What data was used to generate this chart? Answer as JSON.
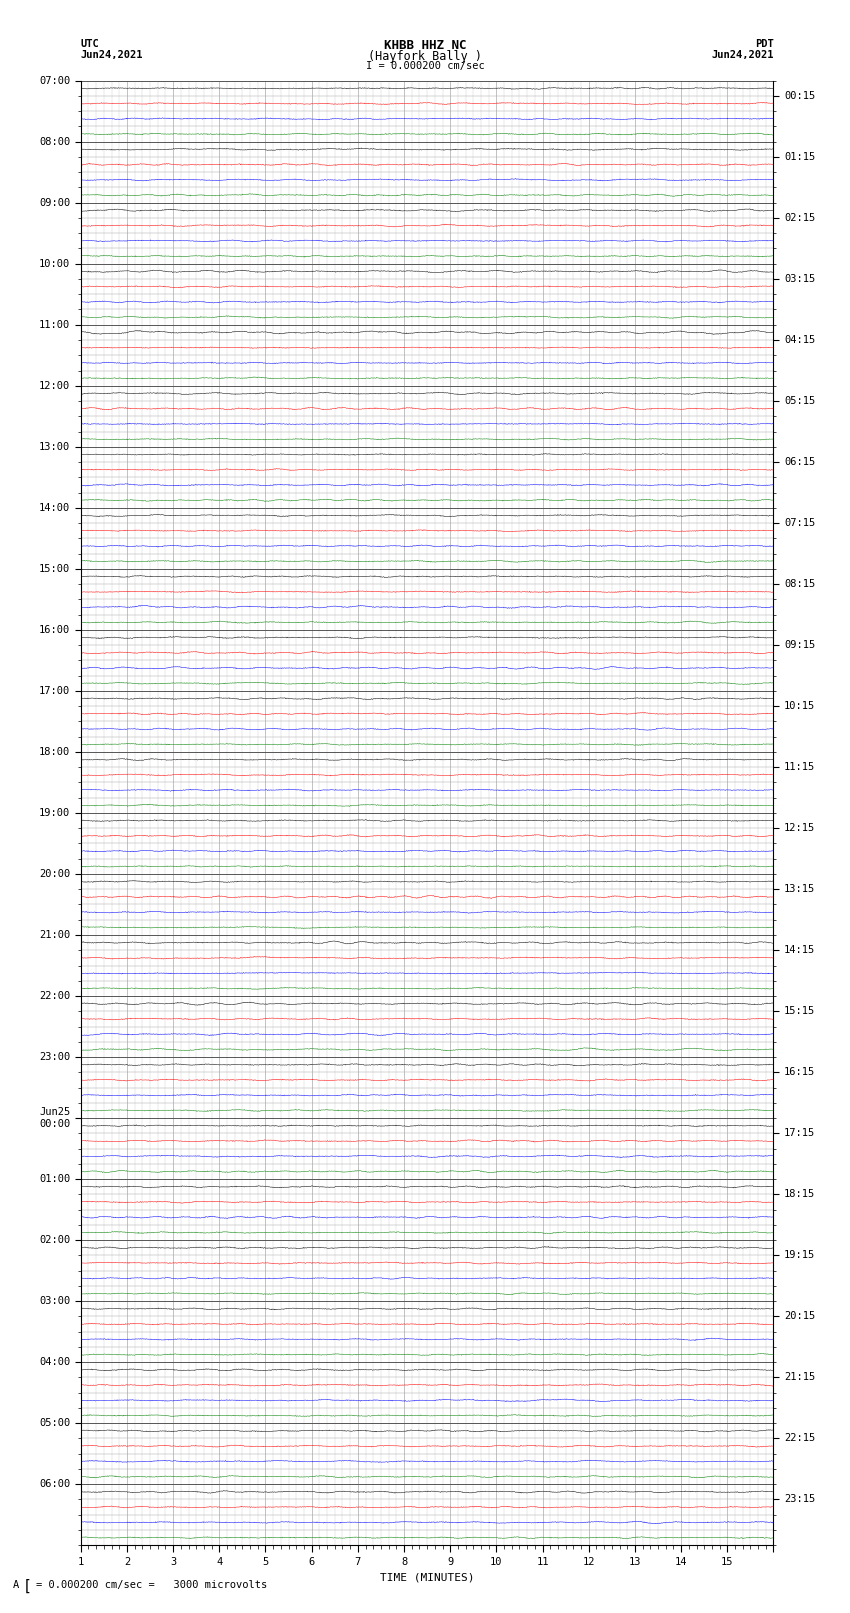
{
  "title_line1": "KHBB HHZ NC",
  "title_line2": "(Hayfork Bally )",
  "title_scale": "I = 0.000200 cm/sec",
  "label_left_top": "UTC",
  "label_left_date": "Jun24,2021",
  "label_right_top": "PDT",
  "label_right_date": "Jun24,2021",
  "xlabel": "TIME (MINUTES)",
  "scale_note": "= 0.000200 cm/sec =   3000 microvolts",
  "num_rows": 96,
  "minutes": 15,
  "trace_colors": [
    "black",
    "red",
    "blue",
    "green"
  ],
  "background_color": "white",
  "major_grid_color": "#aaaaaa",
  "minor_grid_color": "#cccccc",
  "tick_label_size": 7.5,
  "title_fontsize": 9,
  "noise_amplitude": 0.08,
  "left_utc_labels": [
    "07:00",
    "08:00",
    "09:00",
    "10:00",
    "11:00",
    "12:00",
    "13:00",
    "14:00",
    "15:00",
    "16:00",
    "17:00",
    "18:00",
    "19:00",
    "20:00",
    "21:00",
    "22:00",
    "23:00",
    "Jun25\n00:00",
    "01:00",
    "02:00",
    "03:00",
    "04:00",
    "05:00",
    "06:00"
  ],
  "right_pdt_labels": [
    "00:15",
    "01:15",
    "02:15",
    "03:15",
    "04:15",
    "05:15",
    "06:15",
    "07:15",
    "08:15",
    "09:15",
    "10:15",
    "11:15",
    "12:15",
    "13:15",
    "14:15",
    "15:15",
    "16:15",
    "17:15",
    "18:15",
    "19:15",
    "20:15",
    "21:15",
    "22:15",
    "23:15"
  ]
}
